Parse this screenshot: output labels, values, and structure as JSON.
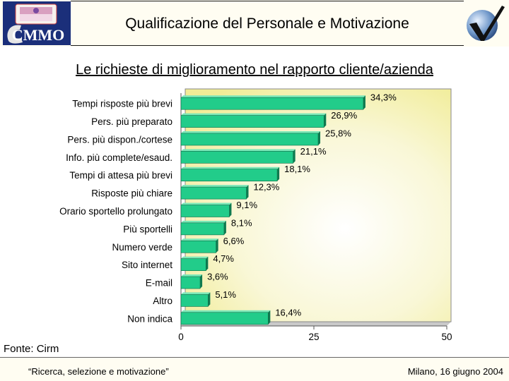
{
  "header": {
    "title": "Qualificazione del Personale e Motivazione",
    "logo_text": "CMMO"
  },
  "subtitle": "Le richieste di miglioramento nel rapporto cliente/azienda",
  "source": "Fonte: Cirm",
  "footer": {
    "left": "“Ricerca, selezione e motivazione”",
    "right": "Milano, 16 giugno 2004"
  },
  "colors": {
    "bar": "#22cc8a",
    "bar_side": "#0f7a50",
    "plot_bg_center": "#ffffff",
    "plot_bg_edge": "#f4f1a0"
  },
  "chart_data": {
    "type": "bar",
    "orientation": "horizontal",
    "categories": [
      "Tempi risposte più brevi",
      "Pers. più preparato",
      "Pers. più dispon./cortese",
      "Info. più complete/esaud.",
      "Tempi di attesa più brevi",
      "Risposte più chiare",
      "Orario sportello prolungato",
      "Più sportelli",
      "Numero verde",
      "Sito internet",
      "E-mail",
      "Altro",
      "Non indica"
    ],
    "values": [
      34.3,
      26.9,
      25.8,
      21.1,
      18.1,
      12.3,
      9.1,
      8.1,
      6.6,
      4.7,
      3.6,
      5.1,
      16.4
    ],
    "data_labels": [
      "34,3%",
      "26,9%",
      "25,8%",
      "21,1%",
      "18,1%",
      "12,3%",
      "9,1%",
      "8,1%",
      "6,6%",
      "4,7%",
      "3,6%",
      "5,1%",
      "16,4%"
    ],
    "xlim": [
      0,
      50
    ],
    "xticks": [
      0,
      25,
      50
    ],
    "xtick_labels": [
      "0",
      "25",
      "50"
    ],
    "grid": false,
    "legend": "none"
  }
}
